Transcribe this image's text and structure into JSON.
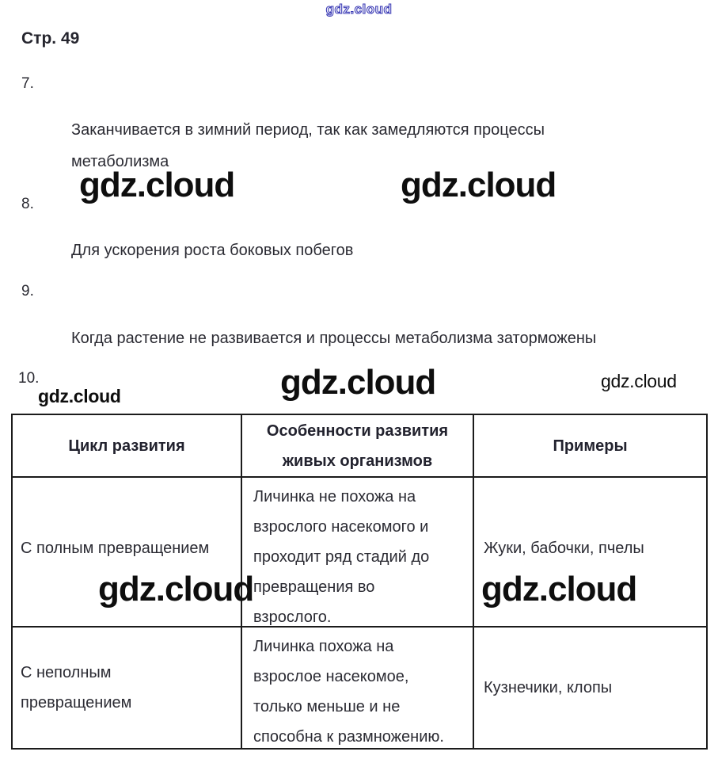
{
  "brand": {
    "watermark": "gdz.cloud",
    "outline_color": "#3a3ab5",
    "watermark_color": "#0e0e0e"
  },
  "page": {
    "heading": "Стр. 49"
  },
  "answers": [
    {
      "number": "7.",
      "text": [
        "Заканчивается в зимний период, так как замедляются процессы",
        "метаболизма"
      ]
    },
    {
      "number": "8.",
      "text": [
        "Для ускорения роста боковых побегов"
      ]
    },
    {
      "number": "9.",
      "text": [
        "Когда растение не развивается и процессы метаболизма заторможены"
      ]
    },
    {
      "number": "10."
    }
  ],
  "table": {
    "headers": {
      "cycle": "Цикл развития",
      "features": [
        "Особенности развития",
        "живых организмов"
      ],
      "examples": "Примеры"
    },
    "rows": [
      {
        "cycle": [
          "С полным превращением"
        ],
        "features": [
          "Личинка не похожа на",
          "взрослого насекомого и",
          "проходит ряд стадий до",
          "превращения во",
          "взрослого."
        ],
        "examples": "Жуки, бабочки, пчелы"
      },
      {
        "cycle": [
          "С неполным",
          "превращением"
        ],
        "features": [
          "Личинка похожа на",
          "взрослое насекомое,",
          "только меньше и не",
          "способна к размножению."
        ],
        "examples": "Кузнечики, клопы"
      }
    ]
  },
  "colors": {
    "text": "#2b2b33",
    "table_border": "#1b1b1b",
    "watermark_black": "#0e0e0e",
    "watermark_blue_outline": "#3a3ab5",
    "background": "#ffffff"
  }
}
